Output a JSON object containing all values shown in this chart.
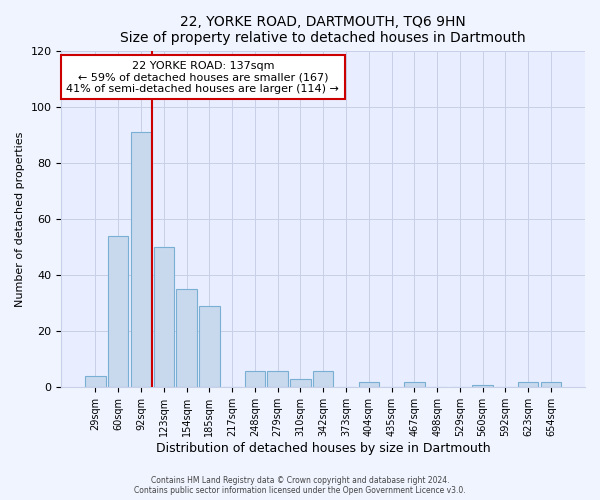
{
  "title": "22, YORKE ROAD, DARTMOUTH, TQ6 9HN",
  "subtitle": "Size of property relative to detached houses in Dartmouth",
  "xlabel": "Distribution of detached houses by size in Dartmouth",
  "ylabel": "Number of detached properties",
  "bar_labels": [
    "29sqm",
    "60sqm",
    "92sqm",
    "123sqm",
    "154sqm",
    "185sqm",
    "217sqm",
    "248sqm",
    "279sqm",
    "310sqm",
    "342sqm",
    "373sqm",
    "404sqm",
    "435sqm",
    "467sqm",
    "498sqm",
    "529sqm",
    "560sqm",
    "592sqm",
    "623sqm",
    "654sqm"
  ],
  "bar_values": [
    4,
    54,
    91,
    50,
    35,
    29,
    0,
    6,
    6,
    3,
    6,
    0,
    2,
    0,
    2,
    0,
    0,
    1,
    0,
    2,
    2
  ],
  "bar_color": "#c8d9ee",
  "bar_edge_color": "#7aafd4",
  "red_line_x": 2.5,
  "annotation_line1": "22 YORKE ROAD: 137sqm",
  "annotation_line2": "← 59% of detached houses are smaller (167)",
  "annotation_line3": "41% of semi-detached houses are larger (114) →",
  "annotation_box_color": "#ffffff",
  "annotation_box_edge": "#cc0000",
  "red_line_color": "#cc0000",
  "ylim": [
    0,
    120
  ],
  "yticks": [
    0,
    20,
    40,
    60,
    80,
    100,
    120
  ],
  "footer1": "Contains HM Land Registry data © Crown copyright and database right 2024.",
  "footer2": "Contains public sector information licensed under the Open Government Licence v3.0.",
  "bg_color": "#f0f4ff",
  "grid_color": "#c8d0e8",
  "plot_bg_color": "#e8eeff"
}
